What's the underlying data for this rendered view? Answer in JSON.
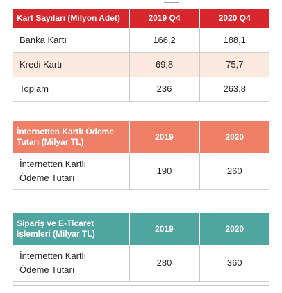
{
  "card_counts": {
    "headers": [
      "Kart Sayıları (Milyon Adet)",
      "2019 Q4",
      "2020 Q4"
    ],
    "rows": [
      {
        "label": "Banka Kartı",
        "q4_2019": "166,2",
        "q4_2020": "188,1"
      },
      {
        "label": "Kredi Kartı",
        "q4_2019": "69,8",
        "q4_2020": "75,7"
      },
      {
        "label": "Toplam",
        "q4_2019": "236",
        "q4_2020": "263,8"
      }
    ]
  },
  "internet_payments": {
    "headers": [
      "İnternetten Kartlı Ödeme Tutarı (Milyar TL)",
      "2019",
      "2020"
    ],
    "row": {
      "label_line1": "İnternetten Kartlı",
      "label_line2": "Ödeme Tutarı",
      "y2019": "190",
      "y2020": "260"
    }
  },
  "ecommerce": {
    "headers": [
      "Sipariş ve E-Ticaret İşlemleri (Milyar TL)",
      "2019",
      "2020"
    ],
    "row": {
      "label_line1": "İnternetten Kartlı",
      "label_line2": "Ödeme Tutarı",
      "y2019": "280",
      "y2020": "360"
    }
  },
  "colors": {
    "card_counts_header": "#d7262c",
    "internet_payments_header": "#f07f68",
    "ecommerce_header": "#4fa59f",
    "shaded_row": "#fbe9df"
  }
}
